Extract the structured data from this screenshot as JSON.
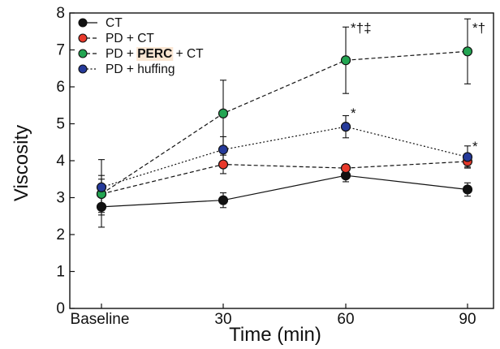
{
  "chart_data": {
    "type": "line",
    "xlabel": "Time (min)",
    "ylabel": "Viscosity",
    "categories": [
      "Baseline",
      "30",
      "60",
      "90"
    ],
    "x": [
      0,
      30,
      60,
      90
    ],
    "ylim": [
      0,
      8
    ],
    "yticks": [
      "0",
      "1",
      "2",
      "3",
      "4",
      "5",
      "6",
      "7",
      "8"
    ],
    "grid": false,
    "legend_position": "top-left",
    "series": [
      {
        "name": "CT",
        "color": "#111111",
        "line": "solid",
        "values": [
          2.75,
          2.93,
          3.6,
          3.22
        ],
        "errors": [
          0.55,
          0.2,
          0.17,
          0.18
        ]
      },
      {
        "name": "PD + CT",
        "color": "#e8392b",
        "line": "dash",
        "values": [
          3.1,
          3.9,
          3.8,
          3.98
        ],
        "errors": [
          0.4,
          0.25,
          0.1,
          0.15
        ]
      },
      {
        "name": "PD + PERC + CT",
        "color": "#23a552",
        "line": "dash",
        "values": [
          3.1,
          5.28,
          6.72,
          6.96
        ],
        "errors": [
          0.5,
          0.9,
          0.9,
          0.88
        ]
      },
      {
        "name": "PD + huffing",
        "color": "#253a9a",
        "line": "dot",
        "values": [
          3.28,
          4.3,
          4.92,
          4.1
        ],
        "errors": [
          0.75,
          0.35,
          0.3,
          0.3
        ]
      }
    ],
    "legend_highlight": "PERC",
    "annotations": [
      {
        "text": "*†‡",
        "x": 60,
        "y": 7.6
      },
      {
        "text": "*†",
        "x": 90,
        "y": 7.6
      },
      {
        "text": "*",
        "x": 60,
        "y": 5.3
      },
      {
        "text": "*",
        "x": 90,
        "y": 4.4
      }
    ]
  }
}
